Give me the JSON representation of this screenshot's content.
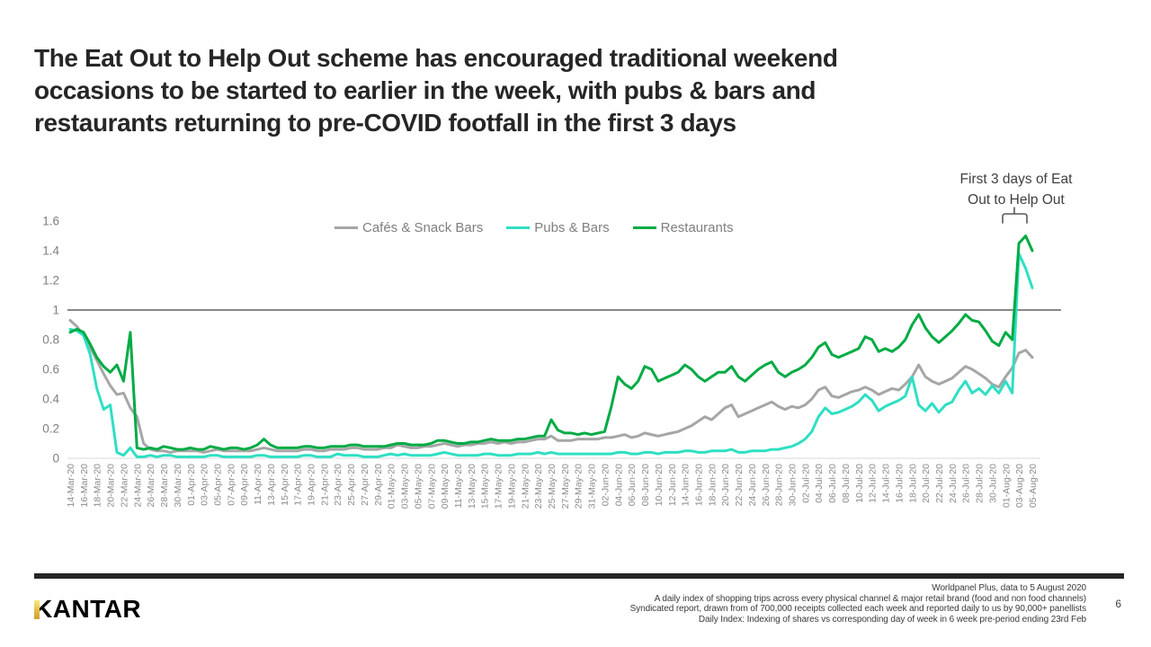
{
  "slide": {
    "title_lines": [
      "The Eat Out to Help Out scheme has encouraged traditional weekend",
      "occasions to be started to earlier in the week, with pubs & bars and",
      "restaurants returning to pre-COVID footfall in the first 3 days"
    ],
    "logo_text": "KANTAR",
    "page_number": "6",
    "footer_lines": [
      "Worldpanel Plus, data to 5 August 2020",
      "A daily index of shopping trips across every physical channel & major retail brand (food and non food channels)",
      "Syndicated report, drawn from of 700,000 receipts collected each week and reported daily to us by 90,000+ panellists",
      "Daily Index: Indexing of shares vs corresponding day of week in 6 week pre-period ending 23rd Feb"
    ]
  },
  "annotation": {
    "line1": "First 3 days of Eat",
    "line2": "Out to Help Out",
    "bracket_color": "#595959"
  },
  "chart_data": {
    "type": "line",
    "title": "",
    "xlabel": "",
    "ylabel": "",
    "x_unit": "day",
    "x_start_date": "14-Mar-20",
    "x_end_date": "05-Aug-20",
    "x_tick_every_days": 2,
    "ylim": [
      0,
      1.6
    ],
    "y_ticks": [
      0,
      0.2,
      0.4,
      0.6,
      0.8,
      1,
      1.2,
      1.4,
      1.6
    ],
    "reference_line_y": 1,
    "grid": false,
    "legend_position": "top",
    "axis_text_color": "#8c8c8c",
    "reference_line_color": "#404040",
    "baseline_color": "#d9d9d9",
    "x_tick_labels": [
      "14-Mar-20",
      "16-Mar-20",
      "18-Mar-20",
      "20-Mar-20",
      "22-Mar-20",
      "24-Mar-20",
      "26-Mar-20",
      "28-Mar-20",
      "30-Mar-20",
      "01-Apr-20",
      "03-Apr-20",
      "05-Apr-20",
      "07-Apr-20",
      "09-Apr-20",
      "11-Apr-20",
      "13-Apr-20",
      "15-Apr-20",
      "17-Apr-20",
      "19-Apr-20",
      "21-Apr-20",
      "23-Apr-20",
      "25-Apr-20",
      "27-Apr-20",
      "29-Apr-20",
      "01-May-20",
      "03-May-20",
      "05-May-20",
      "07-May-20",
      "09-May-20",
      "11-May-20",
      "13-May-20",
      "15-May-20",
      "17-May-20",
      "19-May-20",
      "21-May-20",
      "23-May-20",
      "25-May-20",
      "27-May-20",
      "29-May-20",
      "31-May-20",
      "02-Jun-20",
      "04-Jun-20",
      "06-Jun-20",
      "08-Jun-20",
      "10-Jun-20",
      "12-Jun-20",
      "14-Jun-20",
      "16-Jun-20",
      "18-Jun-20",
      "20-Jun-20",
      "22-Jun-20",
      "24-Jun-20",
      "26-Jun-20",
      "28-Jun-20",
      "30-Jun-20",
      "02-Jul-20",
      "04-Jul-20",
      "06-Jul-20",
      "08-Jul-20",
      "10-Jul-20",
      "12-Jul-20",
      "14-Jul-20",
      "16-Jul-20",
      "18-Jul-20",
      "20-Jul-20",
      "22-Jul-20",
      "24-Jul-20",
      "26-Jul-20",
      "28-Jul-20",
      "30-Jul-20",
      "01-Aug-20",
      "03-Aug-20",
      "05-Aug-20"
    ],
    "series": [
      {
        "name": "Cafés & Snack Bars",
        "color": "#a6a6a6",
        "values": [
          0.93,
          0.89,
          0.83,
          0.75,
          0.66,
          0.57,
          0.49,
          0.43,
          0.44,
          0.34,
          0.28,
          0.1,
          0.06,
          0.05,
          0.05,
          0.04,
          0.05,
          0.05,
          0.05,
          0.05,
          0.04,
          0.05,
          0.06,
          0.05,
          0.05,
          0.05,
          0.05,
          0.05,
          0.06,
          0.07,
          0.06,
          0.05,
          0.05,
          0.05,
          0.05,
          0.06,
          0.06,
          0.05,
          0.05,
          0.06,
          0.06,
          0.06,
          0.07,
          0.07,
          0.06,
          0.06,
          0.06,
          0.07,
          0.07,
          0.09,
          0.08,
          0.07,
          0.07,
          0.08,
          0.08,
          0.09,
          0.1,
          0.09,
          0.08,
          0.09,
          0.09,
          0.1,
          0.1,
          0.11,
          0.1,
          0.11,
          0.1,
          0.11,
          0.11,
          0.12,
          0.13,
          0.13,
          0.15,
          0.12,
          0.12,
          0.12,
          0.13,
          0.13,
          0.13,
          0.13,
          0.14,
          0.14,
          0.15,
          0.16,
          0.14,
          0.15,
          0.17,
          0.16,
          0.15,
          0.16,
          0.17,
          0.18,
          0.2,
          0.22,
          0.25,
          0.28,
          0.26,
          0.3,
          0.34,
          0.36,
          0.28,
          0.3,
          0.32,
          0.34,
          0.36,
          0.38,
          0.35,
          0.33,
          0.35,
          0.34,
          0.36,
          0.4,
          0.46,
          0.48,
          0.42,
          0.41,
          0.43,
          0.45,
          0.46,
          0.48,
          0.46,
          0.43,
          0.45,
          0.47,
          0.46,
          0.5,
          0.55,
          0.63,
          0.55,
          0.52,
          0.5,
          0.52,
          0.54,
          0.58,
          0.62,
          0.6,
          0.57,
          0.54,
          0.5,
          0.48,
          0.55,
          0.61,
          0.71,
          0.73,
          0.68
        ]
      },
      {
        "name": "Pubs & Bars",
        "color": "#2fdfc3",
        "values": [
          0.87,
          0.86,
          0.83,
          0.7,
          0.47,
          0.33,
          0.36,
          0.04,
          0.02,
          0.07,
          0.01,
          0.01,
          0.02,
          0.01,
          0.02,
          0.02,
          0.01,
          0.01,
          0.01,
          0.01,
          0.01,
          0.02,
          0.02,
          0.01,
          0.01,
          0.01,
          0.01,
          0.01,
          0.02,
          0.02,
          0.01,
          0.01,
          0.01,
          0.01,
          0.01,
          0.02,
          0.02,
          0.01,
          0.01,
          0.01,
          0.03,
          0.02,
          0.02,
          0.02,
          0.01,
          0.01,
          0.01,
          0.02,
          0.03,
          0.02,
          0.03,
          0.02,
          0.02,
          0.02,
          0.02,
          0.03,
          0.04,
          0.03,
          0.02,
          0.02,
          0.02,
          0.02,
          0.03,
          0.03,
          0.02,
          0.02,
          0.02,
          0.03,
          0.03,
          0.03,
          0.04,
          0.03,
          0.04,
          0.03,
          0.03,
          0.03,
          0.03,
          0.03,
          0.03,
          0.03,
          0.03,
          0.03,
          0.04,
          0.04,
          0.03,
          0.03,
          0.04,
          0.04,
          0.03,
          0.04,
          0.04,
          0.04,
          0.05,
          0.05,
          0.04,
          0.04,
          0.05,
          0.05,
          0.05,
          0.06,
          0.04,
          0.04,
          0.05,
          0.05,
          0.05,
          0.06,
          0.06,
          0.07,
          0.08,
          0.1,
          0.13,
          0.18,
          0.28,
          0.34,
          0.3,
          0.31,
          0.33,
          0.35,
          0.38,
          0.43,
          0.39,
          0.32,
          0.35,
          0.37,
          0.39,
          0.42,
          0.55,
          0.36,
          0.32,
          0.37,
          0.31,
          0.36,
          0.38,
          0.46,
          0.52,
          0.44,
          0.47,
          0.43,
          0.49,
          0.44,
          0.52,
          0.44,
          1.38,
          1.28,
          1.15
        ]
      },
      {
        "name": "Restaurants",
        "color": "#00ab44",
        "values": [
          0.85,
          0.87,
          0.85,
          0.77,
          0.68,
          0.62,
          0.58,
          0.63,
          0.52,
          0.85,
          0.07,
          0.06,
          0.07,
          0.06,
          0.08,
          0.07,
          0.06,
          0.06,
          0.07,
          0.06,
          0.06,
          0.08,
          0.07,
          0.06,
          0.07,
          0.07,
          0.06,
          0.07,
          0.09,
          0.13,
          0.09,
          0.07,
          0.07,
          0.07,
          0.07,
          0.08,
          0.08,
          0.07,
          0.07,
          0.08,
          0.08,
          0.08,
          0.09,
          0.09,
          0.08,
          0.08,
          0.08,
          0.08,
          0.09,
          0.1,
          0.1,
          0.09,
          0.09,
          0.09,
          0.1,
          0.12,
          0.12,
          0.11,
          0.1,
          0.1,
          0.11,
          0.11,
          0.12,
          0.13,
          0.12,
          0.12,
          0.12,
          0.13,
          0.13,
          0.14,
          0.15,
          0.15,
          0.26,
          0.19,
          0.17,
          0.17,
          0.16,
          0.17,
          0.16,
          0.17,
          0.18,
          0.35,
          0.55,
          0.5,
          0.47,
          0.52,
          0.62,
          0.6,
          0.52,
          0.54,
          0.56,
          0.58,
          0.63,
          0.6,
          0.55,
          0.52,
          0.55,
          0.58,
          0.58,
          0.62,
          0.55,
          0.52,
          0.56,
          0.6,
          0.63,
          0.65,
          0.58,
          0.55,
          0.58,
          0.6,
          0.63,
          0.68,
          0.75,
          0.78,
          0.7,
          0.68,
          0.7,
          0.72,
          0.74,
          0.82,
          0.8,
          0.72,
          0.74,
          0.72,
          0.75,
          0.8,
          0.9,
          0.97,
          0.88,
          0.82,
          0.78,
          0.82,
          0.86,
          0.91,
          0.97,
          0.93,
          0.92,
          0.86,
          0.79,
          0.76,
          0.85,
          0.8,
          1.45,
          1.5,
          1.4
        ]
      }
    ]
  }
}
